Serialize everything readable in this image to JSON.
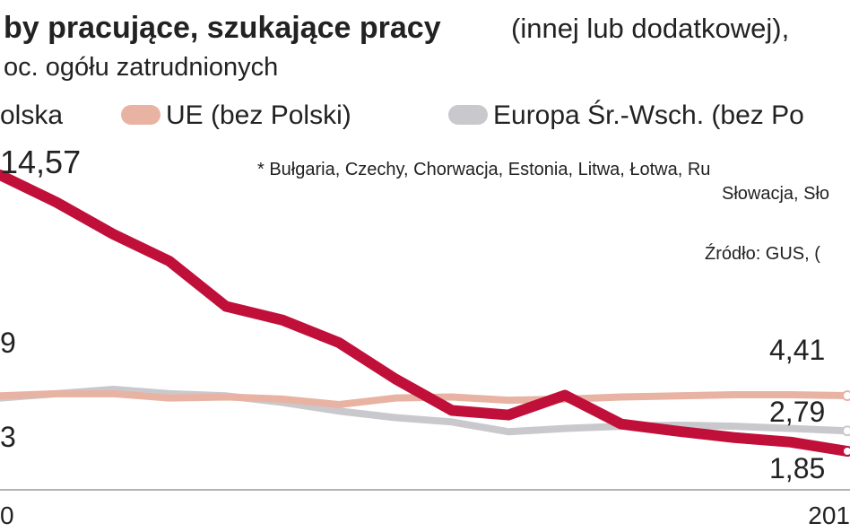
{
  "chart_data": {
    "type": "line",
    "title": "by pracujące, szukające pracy",
    "title_suffix": "(innej lub dodatkowej),",
    "subtitle": "oc. ogółu zatrudnionych",
    "note": [
      "* Bułgaria, Czechy, Chorwacja, Estonia, Litwa, Łotwa, Ru",
      "Słowacja, Sło"
    ],
    "source": "Źródło: GUS, (",
    "categories": [
      "0",
      null,
      null,
      null,
      null,
      null,
      null,
      null,
      null,
      null,
      null,
      null,
      null,
      null,
      null,
      "201"
    ],
    "annotations": [
      "9",
      "3"
    ],
    "series": [
      {
        "name": "olska",
        "color": "#c0103a",
        "values": [
          14.57,
          13.31,
          11.85,
          10.6,
          8.52,
          7.89,
          6.85,
          5.18,
          3.73,
          3.52,
          4.43,
          3.1,
          2.77,
          2.48,
          2.27,
          1.85
        ],
        "value_labels": [
          "14,57",
          null,
          null,
          null,
          null,
          null,
          null,
          null,
          null,
          null,
          null,
          null,
          null,
          null,
          null,
          "1,85"
        ]
      },
      {
        "name": "UE (bez Polski)",
        "color": "#e8b3a3",
        "values": [
          4.4,
          4.5,
          4.5,
          4.3,
          4.35,
          4.25,
          4.0,
          4.3,
          4.35,
          4.2,
          4.25,
          4.35,
          4.4,
          4.45,
          4.45,
          4.41
        ],
        "value_labels": [
          null,
          null,
          null,
          null,
          null,
          null,
          null,
          null,
          null,
          null,
          null,
          null,
          null,
          null,
          null,
          "4,41"
        ]
      },
      {
        "name": "Europa Śr.-Wsch. (bez Po",
        "color": "#c9c9cd",
        "values": [
          4.3,
          4.5,
          4.7,
          4.5,
          4.4,
          4.1,
          3.7,
          3.4,
          3.2,
          2.75,
          2.9,
          3.0,
          3.05,
          3.0,
          2.9,
          2.79
        ],
        "value_labels": [
          null,
          null,
          null,
          null,
          null,
          null,
          null,
          null,
          null,
          null,
          null,
          null,
          null,
          null,
          null,
          "2,79"
        ]
      }
    ]
  }
}
